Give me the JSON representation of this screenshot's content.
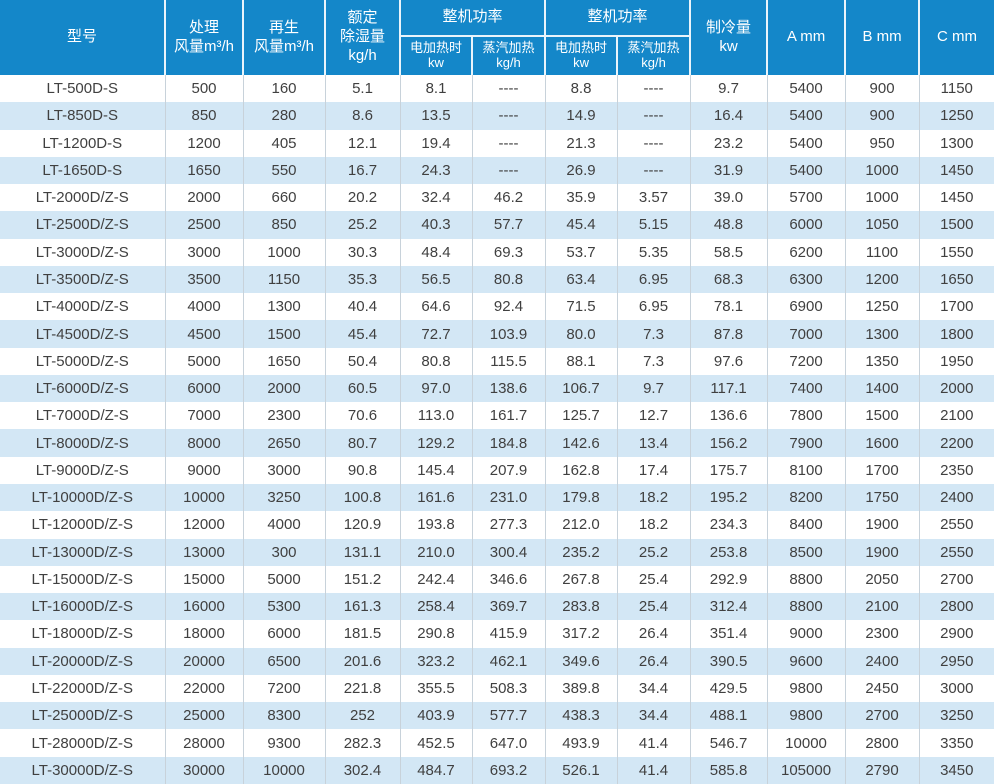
{
  "colors": {
    "header_bg": "#1487c9",
    "header_text": "#ffffff",
    "stripe_bg": "#d3e7f5",
    "body_text": "#404040",
    "grid_line": "#c8d2da"
  },
  "header": {
    "model": "型号",
    "process": {
      "l1": "处理",
      "l2": "风量m³/h"
    },
    "regen": {
      "l1": "再生",
      "l2": "风量m³/h"
    },
    "rated": {
      "l1": "额定",
      "l2": "除湿量",
      "l3": "kg/h"
    },
    "groups": [
      {
        "title": "整机功率",
        "subs": [
          {
            "l1": "电加热时",
            "l2": "kw"
          },
          {
            "l1": "蒸汽加热",
            "l2": "kg/h"
          }
        ]
      },
      {
        "title": "整机功率",
        "subs": [
          {
            "l1": "电加热时",
            "l2": "kw"
          },
          {
            "l1": "蒸汽加热",
            "l2": "kg/h"
          }
        ]
      }
    ],
    "cooling": {
      "l1": "制冷量",
      "l2": "kw"
    },
    "dim_a": "A mm",
    "dim_b": "B mm",
    "dim_c": "C mm"
  },
  "rows": [
    [
      "LT-500D-S",
      "500",
      "160",
      "5.1",
      "8.1",
      "----",
      "8.8",
      "----",
      "9.7",
      "5400",
      "900",
      "1150"
    ],
    [
      "LT-850D-S",
      "850",
      "280",
      "8.6",
      "13.5",
      "----",
      "14.9",
      "----",
      "16.4",
      "5400",
      "900",
      "1250"
    ],
    [
      "LT-1200D-S",
      "1200",
      "405",
      "12.1",
      "19.4",
      "----",
      "21.3",
      "----",
      "23.2",
      "5400",
      "950",
      "1300"
    ],
    [
      "LT-1650D-S",
      "1650",
      "550",
      "16.7",
      "24.3",
      "----",
      "26.9",
      "----",
      "31.9",
      "5400",
      "1000",
      "1450"
    ],
    [
      "LT-2000D/Z-S",
      "2000",
      "660",
      "20.2",
      "32.4",
      "46.2",
      "35.9",
      "3.57",
      "39.0",
      "5700",
      "1000",
      "1450"
    ],
    [
      "LT-2500D/Z-S",
      "2500",
      "850",
      "25.2",
      "40.3",
      "57.7",
      "45.4",
      "5.15",
      "48.8",
      "6000",
      "1050",
      "1500"
    ],
    [
      "LT-3000D/Z-S",
      "3000",
      "1000",
      "30.3",
      "48.4",
      "69.3",
      "53.7",
      "5.35",
      "58.5",
      "6200",
      "1100",
      "1550"
    ],
    [
      "LT-3500D/Z-S",
      "3500",
      "1150",
      "35.3",
      "56.5",
      "80.8",
      "63.4",
      "6.95",
      "68.3",
      "6300",
      "1200",
      "1650"
    ],
    [
      "LT-4000D/Z-S",
      "4000",
      "1300",
      "40.4",
      "64.6",
      "92.4",
      "71.5",
      "6.95",
      "78.1",
      "6900",
      "1250",
      "1700"
    ],
    [
      "LT-4500D/Z-S",
      "4500",
      "1500",
      "45.4",
      "72.7",
      "103.9",
      "80.0",
      "7.3",
      "87.8",
      "7000",
      "1300",
      "1800"
    ],
    [
      "LT-5000D/Z-S",
      "5000",
      "1650",
      "50.4",
      "80.8",
      "115.5",
      "88.1",
      "7.3",
      "97.6",
      "7200",
      "1350",
      "1950"
    ],
    [
      "LT-6000D/Z-S",
      "6000",
      "2000",
      "60.5",
      "97.0",
      "138.6",
      "106.7",
      "9.7",
      "117.1",
      "7400",
      "1400",
      "2000"
    ],
    [
      "LT-7000D/Z-S",
      "7000",
      "2300",
      "70.6",
      "113.0",
      "161.7",
      "125.7",
      "12.7",
      "136.6",
      "7800",
      "1500",
      "2100"
    ],
    [
      "LT-8000D/Z-S",
      "8000",
      "2650",
      "80.7",
      "129.2",
      "184.8",
      "142.6",
      "13.4",
      "156.2",
      "7900",
      "1600",
      "2200"
    ],
    [
      "LT-9000D/Z-S",
      "9000",
      "3000",
      "90.8",
      "145.4",
      "207.9",
      "162.8",
      "17.4",
      "175.7",
      "8100",
      "1700",
      "2350"
    ],
    [
      "LT-10000D/Z-S",
      "10000",
      "3250",
      "100.8",
      "161.6",
      "231.0",
      "179.8",
      "18.2",
      "195.2",
      "8200",
      "1750",
      "2400"
    ],
    [
      "LT-12000D/Z-S",
      "12000",
      "4000",
      "120.9",
      "193.8",
      "277.3",
      "212.0",
      "18.2",
      "234.3",
      "8400",
      "1900",
      "2550"
    ],
    [
      "LT-13000D/Z-S",
      "13000",
      "300",
      "131.1",
      "210.0",
      "300.4",
      "235.2",
      "25.2",
      "253.8",
      "8500",
      "1900",
      "2550"
    ],
    [
      "LT-15000D/Z-S",
      "15000",
      "5000",
      "151.2",
      "242.4",
      "346.6",
      "267.8",
      "25.4",
      "292.9",
      "8800",
      "2050",
      "2700"
    ],
    [
      "LT-16000D/Z-S",
      "16000",
      "5300",
      "161.3",
      "258.4",
      "369.7",
      "283.8",
      "25.4",
      "312.4",
      "8800",
      "2100",
      "2800"
    ],
    [
      "LT-18000D/Z-S",
      "18000",
      "6000",
      "181.5",
      "290.8",
      "415.9",
      "317.2",
      "26.4",
      "351.4",
      "9000",
      "2300",
      "2900"
    ],
    [
      "LT-20000D/Z-S",
      "20000",
      "6500",
      "201.6",
      "323.2",
      "462.1",
      "349.6",
      "26.4",
      "390.5",
      "9600",
      "2400",
      "2950"
    ],
    [
      "LT-22000D/Z-S",
      "22000",
      "7200",
      "221.8",
      "355.5",
      "508.3",
      "389.8",
      "34.4",
      "429.5",
      "9800",
      "2450",
      "3000"
    ],
    [
      "LT-25000D/Z-S",
      "25000",
      "8300",
      "252",
      "403.9",
      "577.7",
      "438.3",
      "34.4",
      "488.1",
      "9800",
      "2700",
      "3250"
    ],
    [
      "LT-28000D/Z-S",
      "28000",
      "9300",
      "282.3",
      "452.5",
      "647.0",
      "493.9",
      "41.4",
      "546.7",
      "10000",
      "2800",
      "3350"
    ],
    [
      "LT-30000D/Z-S",
      "30000",
      "10000",
      "302.4",
      "484.7",
      "693.2",
      "526.1",
      "41.4",
      "585.8",
      "105000",
      "2790",
      "3450"
    ]
  ]
}
